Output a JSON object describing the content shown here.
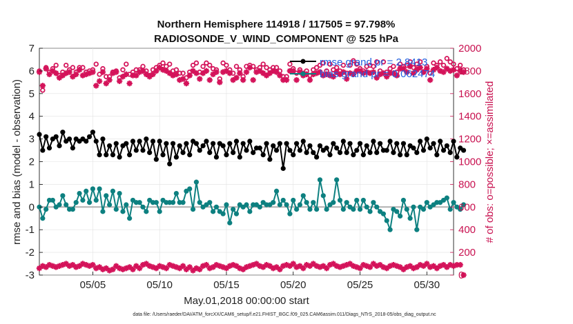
{
  "chart_data": {
    "type": "line",
    "title": "Northern Hemisphere 114918 / 117505 = 97.798%",
    "subtitle": "RADIOSONDE_V_WIND_COMPONENT @ 525 hPa",
    "xlabel": "May.01,2018 00:00:00 start",
    "ylabel": "rmse and bias (model - observation)",
    "y2label": "# of obs: o=possible; ×=assimilated",
    "footer": "data file: /Users/raeder/DAI/ATM_forcXX/CAM6_setup/f.e21.FHIST_BGC.f09_025.CAM6assim.011/Diags_NTrS_2018-05/obs_diag_output.nc",
    "xlim": [
      1,
      32
    ],
    "ylim": [
      -3,
      7
    ],
    "y2lim": [
      0,
      2000
    ],
    "yticks": [
      "-3",
      "-2",
      "-1",
      "0",
      "1",
      "2",
      "3",
      "4",
      "5",
      "6",
      "7"
    ],
    "y2ticks": [
      "0",
      "200",
      "400",
      "600",
      "800",
      "1000",
      "1200",
      "1400",
      "1600",
      "1800",
      "2000"
    ],
    "xticks": [
      {
        "value": 5,
        "label": "05/05"
      },
      {
        "value": 10,
        "label": "05/10"
      },
      {
        "value": 15,
        "label": "05/15"
      },
      {
        "value": 20,
        "label": "05/20"
      },
      {
        "value": 25,
        "label": "05/25"
      },
      {
        "value": 30,
        "label": "05/30"
      }
    ],
    "colors": {
      "rmse": "#000000",
      "bias": "#0d8080",
      "obs": "#d4135a",
      "legend_text": "#1f5fe0",
      "zero_line": "#b0b0b0"
    },
    "legend": [
      {
        "name": "rmse",
        "label": "rmse grand pr = 2.8413"
      },
      {
        "name": "bias",
        "label": "bias grand pr = 0.062474"
      }
    ],
    "x_start": 1.0,
    "x_step": 0.25,
    "series": [
      {
        "name": "rmse",
        "values": [
          3.2,
          2.5,
          3.1,
          2.6,
          3.0,
          3.1,
          2.7,
          3.3,
          2.9,
          3.0,
          2.6,
          3.0,
          2.9,
          3.0,
          2.9,
          3.1,
          3.3,
          2.9,
          2.3,
          3.0,
          2.3,
          2.7,
          2.3,
          2.8,
          2.2,
          2.7,
          2.8,
          2.3,
          2.9,
          2.5,
          2.9,
          2.5,
          3.0,
          2.4,
          2.9,
          2.1,
          2.9,
          2.3,
          2.8,
          1.9,
          2.8,
          2.2,
          2.7,
          2.4,
          2.8,
          2.3,
          2.9,
          2.8,
          2.5,
          2.7,
          2.9,
          2.4,
          2.8,
          2.2,
          2.8,
          2.7,
          2.3,
          2.8,
          2.4,
          2.9,
          2.2,
          2.8,
          2.5,
          2.9,
          2.4,
          2.6,
          2.6,
          2.3,
          2.8,
          2.1,
          2.7,
          2.5,
          2.8,
          1.7,
          2.8,
          2.5,
          2.3,
          2.8,
          2.5,
          2.9,
          2.4,
          2.7,
          2.4,
          2.2,
          2.7,
          2.5,
          2.6,
          2.3,
          2.8,
          2.6,
          2.4,
          2.9,
          2.4,
          2.8,
          2.3,
          2.5,
          2.8,
          2.3,
          2.7,
          2.4,
          2.9,
          2.4,
          2.8,
          2.5,
          2.5,
          2.9,
          2.4,
          2.8,
          2.3,
          2.8,
          2.3,
          2.7,
          2.6,
          2.4,
          2.9,
          2.5,
          3.0,
          2.6,
          2.8,
          2.3,
          2.9,
          2.5,
          2.7,
          2.4,
          2.9,
          2.2,
          2.6,
          2.5
        ]
      },
      {
        "name": "bias",
        "values": [
          0.0,
          -0.5,
          -0.1,
          0.3,
          0.3,
          0.0,
          0.1,
          0.5,
          0.1,
          -0.1,
          -0.1,
          0.2,
          0.6,
          0.3,
          0.7,
          0.2,
          0.8,
          0.3,
          0.8,
          -0.2,
          0.5,
          0.1,
          0.7,
          -0.1,
          0.6,
          -0.2,
          0.1,
          -0.5,
          0.3,
          0.2,
          0.2,
          0.0,
          -0.2,
          0.3,
          0.2,
          0.2,
          -0.2,
          0.3,
          0.2,
          0.2,
          0.2,
          0.6,
          0.2,
          0.2,
          0.7,
          0.8,
          -0.1,
          1.1,
          0.2,
          0.0,
          0.1,
          0.2,
          -0.2,
          0.0,
          -0.2,
          -0.3,
          0.1,
          -0.7,
          -0.1,
          -0.3,
          0.1,
          0.0,
          0.1,
          -0.2,
          0.1,
          0.1,
          0.0,
          0.2,
          0.1,
          0.1,
          0.2,
          0.7,
          0.1,
          0.3,
          0.1,
          -0.3,
          0.3,
          -0.1,
          0.1,
          0.5,
          0.2,
          -0.1,
          0.2,
          -0.1,
          1.2,
          0.5,
          -0.1,
          0.1,
          0.2,
          1.2,
          0.3,
          -0.1,
          0.2,
          0.0,
          -0.1,
          0.3,
          -0.1,
          0.3,
          0.0,
          -0.2,
          0.2,
          0.0,
          -0.2,
          -0.3,
          -0.6,
          -1.0,
          -0.1,
          -0.2,
          -0.4,
          0.3,
          -0.1,
          -0.5,
          0.0,
          -1.0,
          0.0,
          -0.1,
          0.2,
          0.0,
          0.1,
          0.2,
          0.2,
          0.3,
          0.4,
          -0.1,
          0.2,
          0.0,
          -0.1,
          0.1
        ]
      },
      {
        "name": "obs_possible",
        "values": [
          1800,
          1630,
          1830,
          1790,
          1820,
          1850,
          1760,
          1790,
          1850,
          1810,
          1830,
          1790,
          1830,
          1830,
          1790,
          1800,
          1810,
          1860,
          1770,
          1820,
          1750,
          1750,
          1790,
          1800,
          1740,
          1810,
          1860,
          1770,
          1790,
          1810,
          1810,
          1840,
          1800,
          1760,
          1810,
          1830,
          1850,
          1870,
          1840,
          1860,
          1800,
          1810,
          1780,
          1780,
          1740,
          1790,
          1850,
          1870,
          1790,
          1840,
          1870,
          1850,
          1820,
          1810,
          1730,
          1870,
          1850,
          1810,
          1780,
          1840,
          1810,
          1750,
          1840,
          1850,
          1840,
          1810,
          1830,
          1860,
          1830,
          1810,
          1830,
          1830,
          1800,
          1750,
          1750,
          1860,
          1820,
          1780,
          1810,
          1780,
          1800,
          1760,
          1810,
          1830,
          1850,
          1870,
          1800,
          1860,
          1810,
          1830,
          1800,
          1850,
          1780,
          1850,
          1890,
          1860,
          1820,
          1800,
          1840,
          1850,
          1840,
          1880,
          1800,
          1880,
          1790,
          1820,
          1840,
          1790,
          1860,
          1840,
          1850,
          1880,
          1830,
          1860,
          1880,
          1790,
          1840,
          1780,
          1870,
          1850,
          1880,
          1850,
          1910,
          1880,
          1860,
          1820,
          1850,
          1810
        ]
      },
      {
        "name": "obs_assimilated",
        "values": [
          1790,
          1670,
          1820,
          1770,
          1800,
          1780,
          1740,
          1760,
          1780,
          1790,
          1750,
          1770,
          1810,
          1760,
          1770,
          1780,
          1790,
          1670,
          1710,
          1790,
          1690,
          1720,
          1780,
          1790,
          1710,
          1750,
          1770,
          1690,
          1760,
          1760,
          1790,
          1800,
          1770,
          1750,
          1770,
          1800,
          1830,
          1810,
          1800,
          1780,
          1760,
          1770,
          1720,
          1730,
          1690,
          1760,
          1800,
          1780,
          1730,
          1780,
          1800,
          1720,
          1770,
          1790,
          1700,
          1790,
          1800,
          1780,
          1720,
          1740,
          1780,
          1720,
          1790,
          1830,
          1720,
          1790,
          1800,
          1780,
          1760,
          1780,
          1800,
          1790,
          1760,
          1720,
          1720,
          1800,
          1800,
          1720,
          1790,
          1760,
          1770,
          1720,
          1770,
          1780,
          1790,
          1760,
          1770,
          1760,
          1750,
          1790,
          1770,
          1790,
          1730,
          1780,
          1770,
          1800,
          1800,
          1780,
          1790,
          1780,
          1790,
          1740,
          1770,
          1780,
          1750,
          1780,
          1780,
          1760,
          1820,
          1820,
          1790,
          1840,
          1780,
          1810,
          1830,
          1790,
          1820,
          1720,
          1810,
          1830,
          1800,
          1790,
          1820,
          1800,
          1810,
          1760,
          1800,
          1790
        ]
      },
      {
        "name": "obs_bottom",
        "values": [
          60,
          80,
          70,
          90,
          80,
          70,
          80,
          90,
          100,
          80,
          90,
          70,
          80,
          100,
          90,
          80,
          90,
          60,
          70,
          50,
          60,
          40,
          50,
          80,
          60,
          50,
          60,
          70,
          50,
          80,
          60,
          90,
          100,
          80,
          70,
          60,
          80,
          70,
          60,
          90,
          80,
          70,
          60,
          80,
          50,
          70,
          40,
          60,
          50,
          80,
          90,
          60,
          70,
          90,
          80,
          70,
          60,
          80,
          90,
          80,
          60,
          50,
          70,
          80,
          90,
          100,
          80,
          70,
          90,
          80,
          60,
          70,
          50,
          80,
          90,
          80,
          100,
          70,
          80,
          60,
          90,
          80,
          100,
          80,
          70,
          80,
          60,
          90,
          100,
          80,
          70,
          80,
          90,
          100,
          80,
          70,
          60,
          90,
          80,
          70,
          100,
          80,
          90,
          70,
          60,
          80,
          90,
          80,
          70,
          50,
          70,
          80,
          60,
          70,
          90,
          80,
          100,
          70,
          80,
          60,
          80,
          90,
          70,
          90,
          80,
          90,
          90,
          0
        ]
      }
    ]
  }
}
